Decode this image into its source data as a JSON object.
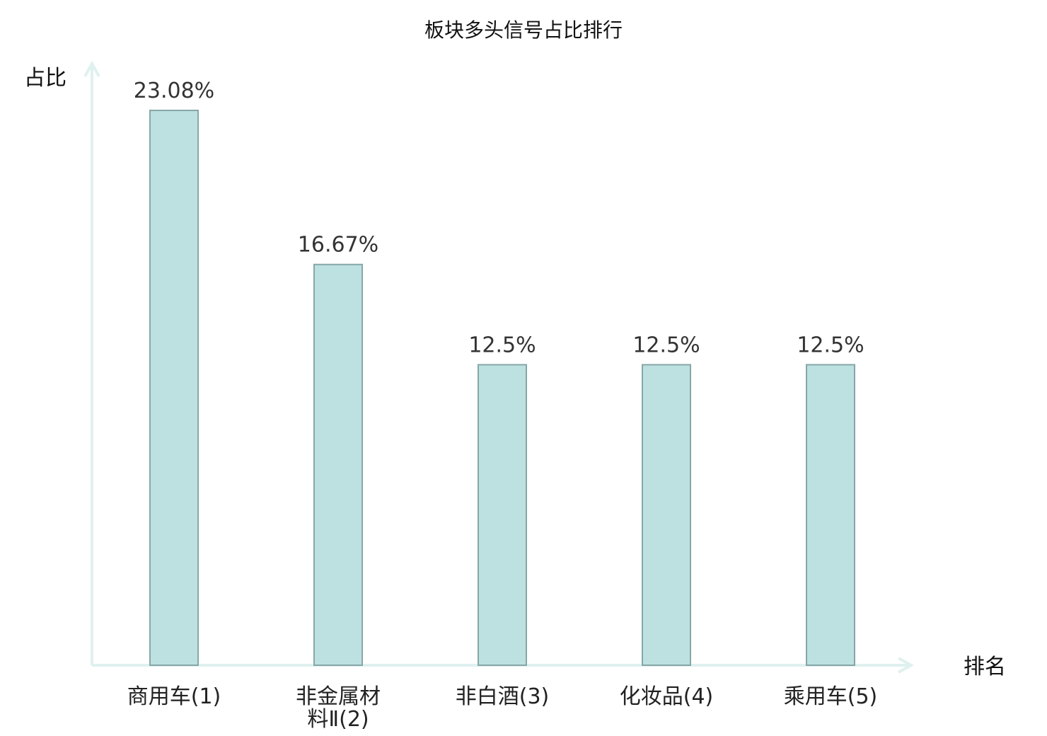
{
  "chart_data": {
    "type": "bar",
    "title": "板块多头信号占比排行",
    "xlabel": "排名",
    "ylabel": "占比",
    "categories": [
      [
        "商用车(1)"
      ],
      [
        "非金属材",
        "料Ⅱ(2)"
      ],
      [
        "非白酒(3)"
      ],
      [
        "化妆品(4)"
      ],
      [
        "乘用车(5)"
      ]
    ],
    "values": [
      23.08,
      16.67,
      12.5,
      12.5,
      12.5
    ],
    "value_labels": [
      "23.08%",
      "16.67%",
      "12.5%",
      "12.5%",
      "12.5%"
    ],
    "highlight_index": 0,
    "ylim": [
      0,
      23.08
    ],
    "grid": false,
    "legend": "none",
    "colors": {
      "bar_fill": "#bde0e1",
      "bar_stroke": "#86a7a7",
      "axis": "#dff1ef",
      "highlight_label": "#e02020",
      "label": "#222222",
      "value_label": "#333333",
      "title": "#111111"
    }
  }
}
